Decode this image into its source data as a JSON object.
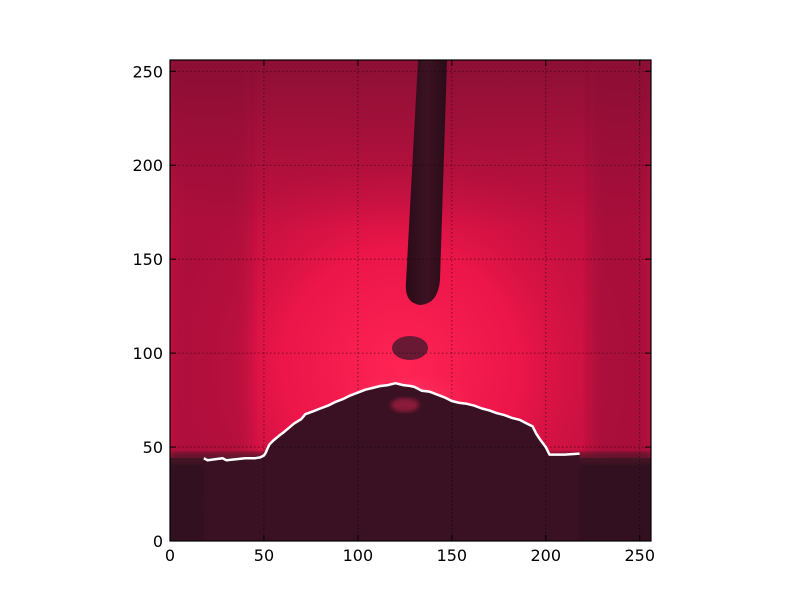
{
  "chart_data": {
    "type": "image-with-line-overlay",
    "title": "",
    "xlabel": "",
    "ylabel": "",
    "xlim": [
      0,
      256
    ],
    "ylim": [
      0,
      256
    ],
    "xticks": [
      0,
      50,
      100,
      150,
      200,
      250
    ],
    "yticks": [
      0,
      50,
      100,
      150,
      200,
      250
    ],
    "grid": true,
    "grid_style": "dotted",
    "image_description_colors": {
      "background_red": "#e8123f",
      "bright_red": "#ff1f4f",
      "dark_base": "#2e0d1c",
      "electrode": "#35101e",
      "contour_line": "#ffffff"
    },
    "series": [
      {
        "x": [
          18,
          20,
          24,
          28,
          30,
          35,
          40,
          45,
          48,
          50,
          51,
          52,
          53,
          55,
          58,
          60,
          63,
          66,
          70,
          72,
          76,
          80,
          84,
          88,
          92,
          96,
          100,
          104,
          108,
          112,
          116,
          120,
          122,
          124,
          128,
          130,
          134,
          138,
          142,
          146,
          150,
          154,
          158,
          162,
          166,
          170,
          174,
          178,
          182,
          186,
          190,
          193,
          195,
          197,
          200,
          202,
          210,
          218
        ],
        "y": [
          44,
          43,
          43.5,
          44,
          43,
          43.5,
          44,
          44,
          44.5,
          45.5,
          47,
          49.5,
          51.5,
          53.5,
          56,
          57.5,
          60,
          62.5,
          65,
          67.5,
          69,
          70.5,
          72,
          74,
          75.5,
          77.5,
          79,
          80.5,
          81.5,
          82.5,
          83,
          84,
          83.5,
          83,
          82.5,
          82,
          80,
          79.5,
          78,
          76.5,
          74.5,
          73.5,
          73,
          72,
          70.5,
          69.5,
          68,
          67,
          65.5,
          64.5,
          62.5,
          61,
          57,
          54,
          50,
          46,
          46,
          46.5
        ]
      }
    ]
  }
}
